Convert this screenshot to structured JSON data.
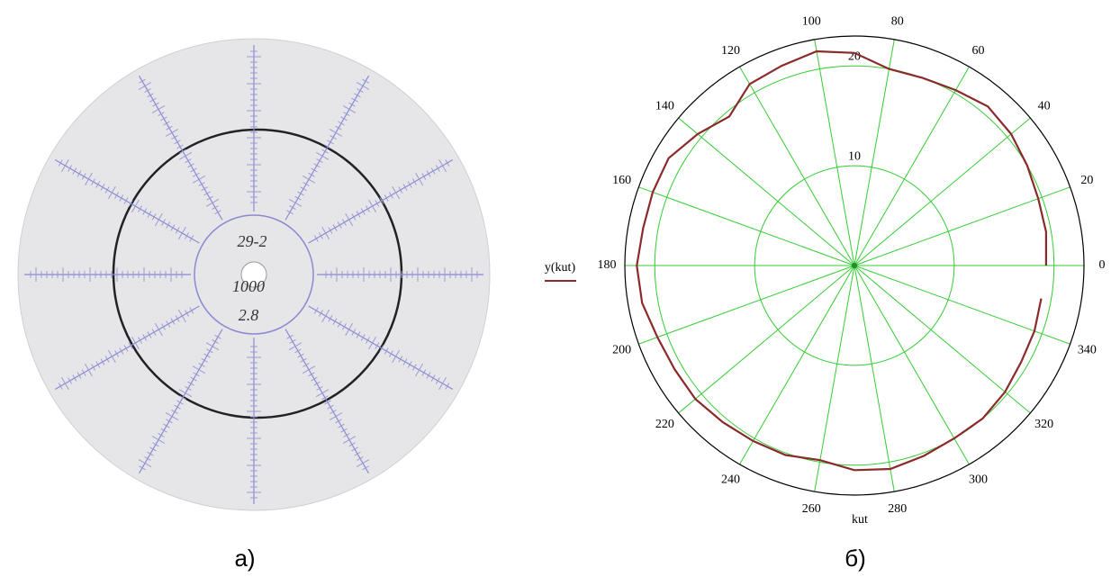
{
  "panel_a": {
    "caption": "а)",
    "disc_labels": [
      "29-2",
      "1000",
      "2.8"
    ]
  },
  "chart_data": {
    "type": "polar",
    "caption": "б)",
    "x_label": "kut",
    "x": [
      0,
      10,
      20,
      30,
      40,
      50,
      60,
      70,
      80,
      90,
      100,
      110,
      120,
      130,
      140,
      150,
      160,
      170,
      180,
      190,
      200,
      210,
      220,
      230,
      240,
      250,
      260,
      270,
      280,
      290,
      300,
      310,
      320,
      330,
      340,
      350
    ],
    "series": [
      {
        "name": "y(kut)",
        "color": "#8b2a2a",
        "values": [
          19.2,
          19.5,
          19.6,
          20.0,
          20.5,
          20.8,
          20.3,
          20.0,
          20.0,
          21.3,
          21.8,
          21.3,
          21.0,
          19.5,
          20.5,
          21.5,
          21.5,
          21.5,
          21.8,
          21.6,
          21.0,
          20.8,
          20.8,
          20.5,
          20.3,
          20.2,
          19.8,
          20.5,
          20.7,
          20.3,
          20.0,
          20.0,
          19.7,
          19.3,
          19.2,
          19.0
        ]
      }
    ],
    "xticks": [
      0,
      20,
      40,
      60,
      80,
      100,
      120,
      140,
      160,
      180,
      200,
      220,
      240,
      260,
      280,
      300,
      320,
      340
    ],
    "rlim": [
      0,
      23
    ],
    "rticks": [
      10,
      20
    ],
    "grid": true,
    "grid_color": "#33cc33"
  }
}
